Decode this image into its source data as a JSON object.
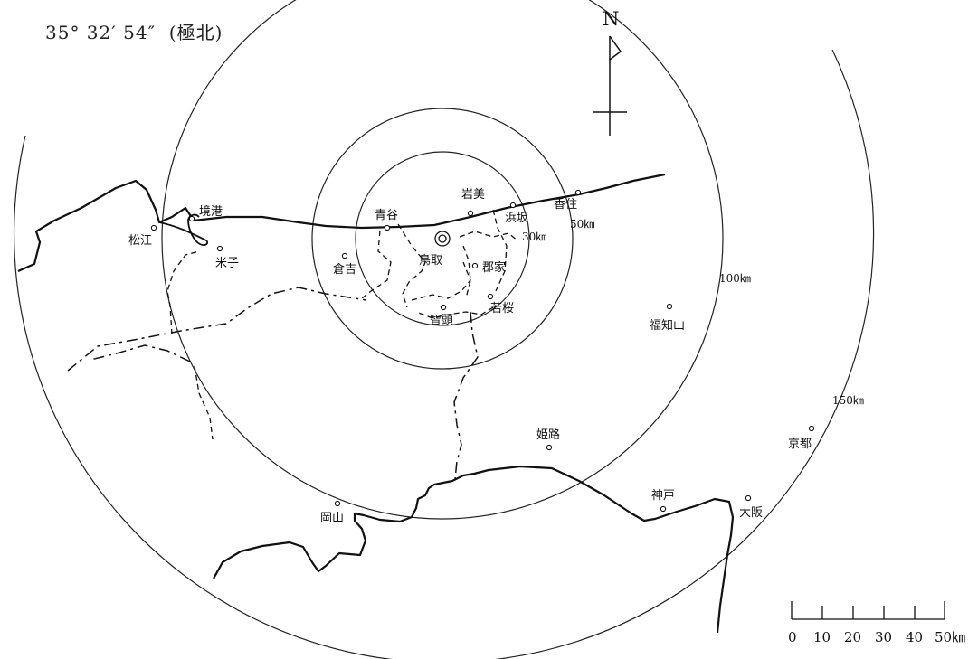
{
  "header": {
    "coordinate": "35° 32′ 54″",
    "direction": "(極北)"
  },
  "north_label": "N",
  "rings": [
    {
      "id": "r30",
      "label": "30㎞"
    },
    {
      "id": "r50",
      "label": "50㎞"
    },
    {
      "id": "r100",
      "label": "100㎞"
    },
    {
      "id": "r150",
      "label": "150㎞"
    }
  ],
  "cities": [
    {
      "id": "tottori",
      "label": "鳥取",
      "marker": "double-circle"
    },
    {
      "id": "aoya",
      "label": "青谷"
    },
    {
      "id": "iwami",
      "label": "岩美"
    },
    {
      "id": "hamasaka",
      "label": "浜坂"
    },
    {
      "id": "kasumi",
      "label": "香住"
    },
    {
      "id": "kurayoshi",
      "label": "倉吉"
    },
    {
      "id": "koge",
      "label": "郡家"
    },
    {
      "id": "wakasa",
      "label": "若桜"
    },
    {
      "id": "chizu",
      "label": "智頭"
    },
    {
      "id": "sakaiminato",
      "label": "境港"
    },
    {
      "id": "matsue",
      "label": "松江"
    },
    {
      "id": "yonago",
      "label": "米子"
    },
    {
      "id": "fukuchiyama",
      "label": "福知山"
    },
    {
      "id": "himeji",
      "label": "姫路"
    },
    {
      "id": "kyoto",
      "label": "京都"
    },
    {
      "id": "kobe",
      "label": "神戸"
    },
    {
      "id": "osaka",
      "label": "大阪"
    },
    {
      "id": "okayama",
      "label": "岡山"
    }
  ],
  "scale": {
    "ticks": [
      "0",
      "10",
      "20",
      "30",
      "40",
      "50"
    ],
    "unit": "㎞"
  }
}
